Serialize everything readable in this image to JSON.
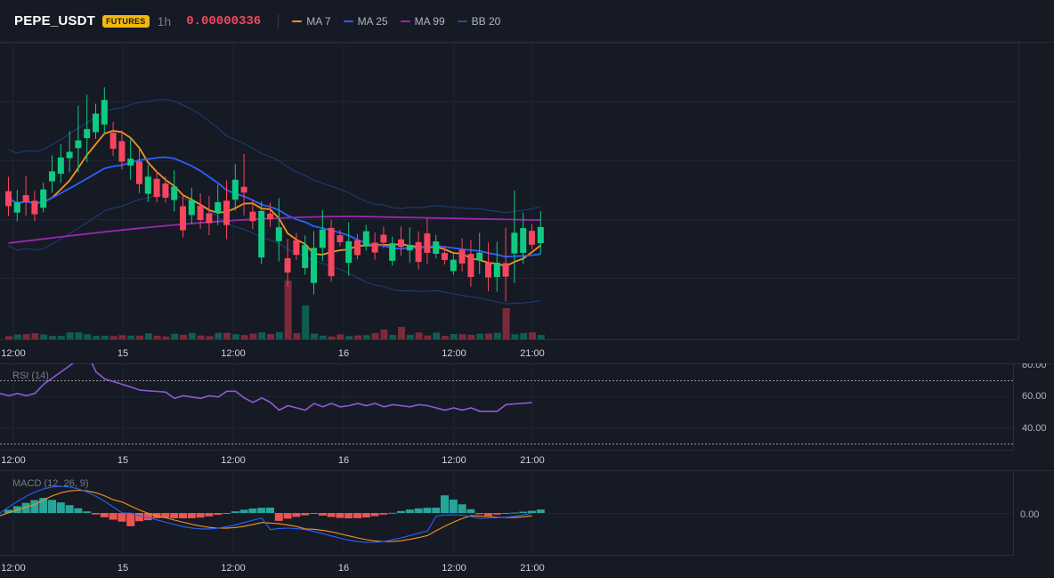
{
  "header": {
    "symbol": "PEPE_USDT",
    "market_badge": "FUTURES",
    "timeframe": "1h",
    "price": "0.00000336",
    "indicators": [
      {
        "label": "MA 7",
        "color": "#f7931a"
      },
      {
        "label": "MA 25",
        "color": "#2962ff"
      },
      {
        "label": "MA 99",
        "color": "#9c27b0"
      },
      {
        "label": "BB 20",
        "color": "#1e3f7a"
      }
    ]
  },
  "time_axis": [
    "12:00",
    "15",
    "12:00",
    "16",
    "12:00",
    "21:00"
  ],
  "rsi": {
    "label": "RSI (14)",
    "ticks": [
      "80.00",
      "60.00",
      "40.00"
    ],
    "overbought": 70,
    "oversold": 30
  },
  "macd": {
    "label": "MACD (12, 26, 9)",
    "ticks": [
      "0.00"
    ]
  },
  "colors": {
    "up": "#0ecb81",
    "down": "#f6465d",
    "vol_up": "#0f5c52",
    "vol_down": "#7c2a3b",
    "rsi_line": "#8e5ad6",
    "macd_line": "#2962ff",
    "signal_line": "#f7931a",
    "hist_up": "#26a69a",
    "hist_down": "#ef5350"
  }
}
